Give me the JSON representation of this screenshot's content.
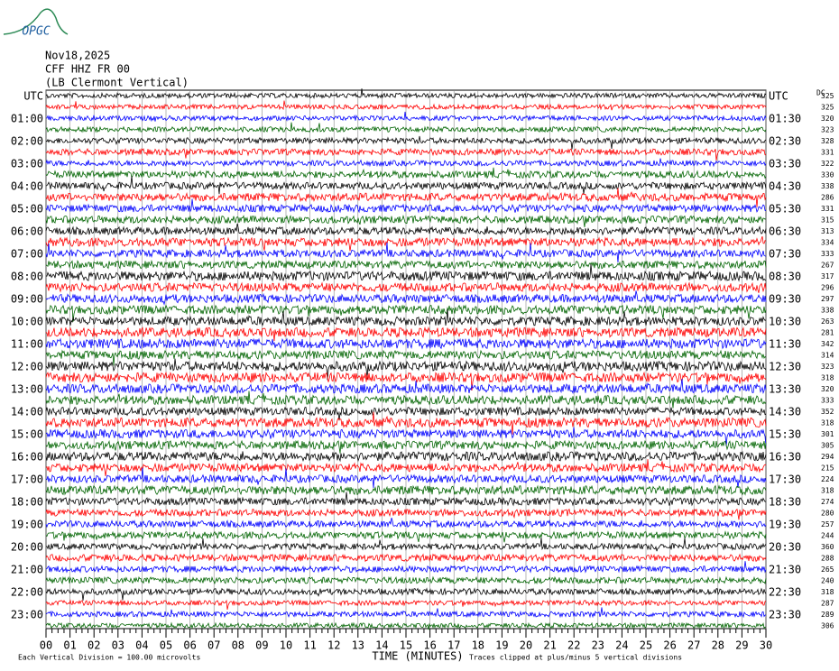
{
  "logo": "OPGC",
  "header": {
    "date": "Nov18,2025",
    "station": "CFF HHZ FR 00",
    "location": "(LB Clermont Vertical)"
  },
  "left_labels": [
    "UTC",
    "01:00",
    "02:00",
    "03:00",
    "04:00",
    "05:00",
    "06:00",
    "07:00",
    "08:00",
    "09:00",
    "10:00",
    "11:00",
    "12:00",
    "13:00",
    "14:00",
    "15:00",
    "16:00",
    "17:00",
    "18:00",
    "19:00",
    "20:00",
    "21:00",
    "22:00",
    "23:00"
  ],
  "right_labels": [
    "UTC",
    "01:30",
    "02:30",
    "03:30",
    "04:30",
    "05:30",
    "06:30",
    "07:30",
    "08:30",
    "09:30",
    "10:30",
    "11:30",
    "12:30",
    "13:30",
    "14:30",
    "15:30",
    "16:30",
    "17:30",
    "18:30",
    "19:30",
    "20:30",
    "21:30",
    "22:30",
    "23:30"
  ],
  "dc_label": "DC",
  "dc_offsets": [
    325,
    325,
    320,
    323,
    328,
    331,
    322,
    330,
    338,
    286,
    331,
    315,
    313,
    334,
    333,
    267,
    317,
    296,
    297,
    338,
    263,
    281,
    342,
    314,
    323,
    318,
    320,
    333,
    352,
    318,
    301,
    305,
    294,
    215,
    224,
    318,
    274,
    280,
    257,
    244,
    360,
    288,
    265,
    240,
    318,
    287,
    289,
    306
  ],
  "trace_colors": [
    "#000000",
    "#ff0000",
    "#0000ff",
    "#006400"
  ],
  "x_axis": {
    "ticks": [
      "00",
      "01",
      "02",
      "03",
      "04",
      "05",
      "06",
      "07",
      "08",
      "09",
      "10",
      "11",
      "12",
      "13",
      "14",
      "15",
      "16",
      "17",
      "18",
      "19",
      "20",
      "21",
      "22",
      "23",
      "24",
      "25",
      "26",
      "27",
      "28",
      "29",
      "30"
    ],
    "label": "TIME (MINUTES)"
  },
  "footer": {
    "scale": "Each Vertical Division =  100.00 microvolts",
    "clip": "Traces clipped at plus/minus 5 vertical divisions"
  }
}
